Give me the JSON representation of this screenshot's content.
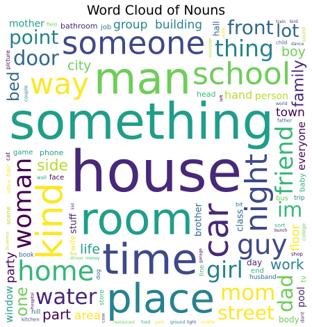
{
  "chart_data": {
    "type": "wordcloud",
    "title": "Word Cloud of Nouns",
    "background": "#ffffff",
    "colormap": "viridis",
    "words": [
      {
        "text": "house",
        "weight": 1.0
      },
      {
        "text": "something",
        "weight": 0.86
      },
      {
        "text": "room",
        "weight": 0.74
      },
      {
        "text": "man",
        "weight": 0.74
      },
      {
        "text": "time",
        "weight": 0.7
      },
      {
        "text": "place",
        "weight": 0.66
      },
      {
        "text": "kind",
        "weight": 0.58
      },
      {
        "text": "car",
        "weight": 0.56
      },
      {
        "text": "someone",
        "weight": 0.5
      },
      {
        "text": "night",
        "weight": 0.48
      },
      {
        "text": "school",
        "weight": 0.48
      },
      {
        "text": "way",
        "weight": 0.46
      },
      {
        "text": "guy",
        "weight": 0.42
      },
      {
        "text": "home",
        "weight": 0.42
      },
      {
        "text": "woman",
        "weight": 0.38
      },
      {
        "text": "friend",
        "weight": 0.36
      },
      {
        "text": "girl",
        "weight": 0.34
      },
      {
        "text": "thing",
        "weight": 0.34
      },
      {
        "text": "water",
        "weight": 0.32
      },
      {
        "text": "mom",
        "weight": 0.32
      },
      {
        "text": "im",
        "weight": 0.3
      },
      {
        "text": "door",
        "weight": 0.3
      },
      {
        "text": "dad",
        "weight": 0.3
      },
      {
        "text": "front",
        "weight": 0.28
      },
      {
        "text": "street",
        "weight": 0.28
      },
      {
        "text": "point",
        "weight": 0.28
      },
      {
        "text": "family",
        "weight": 0.26
      },
      {
        "text": "side",
        "weight": 0.26
      },
      {
        "text": "everyone",
        "weight": 0.26
      },
      {
        "text": "lot",
        "weight": 0.26
      },
      {
        "text": "part",
        "weight": 0.24
      },
      {
        "text": "work",
        "weight": 0.24
      },
      {
        "text": "one",
        "weight": 0.22
      },
      {
        "text": "hand",
        "weight": 0.22
      },
      {
        "text": "bed",
        "weight": 0.22
      },
      {
        "text": "floor",
        "weight": 0.2
      },
      {
        "text": "building",
        "weight": 0.2
      },
      {
        "text": "group",
        "weight": 0.2
      },
      {
        "text": "person",
        "weight": 0.2
      },
      {
        "text": "life",
        "weight": 0.18
      },
      {
        "text": "city",
        "weight": 0.18
      },
      {
        "text": "boy",
        "weight": 0.18
      },
      {
        "text": "stuff",
        "weight": 0.18
      },
      {
        "text": "class",
        "weight": 0.18
      },
      {
        "text": "brother",
        "weight": 0.18
      },
      {
        "text": "mother",
        "weight": 0.16
      },
      {
        "text": "window",
        "weight": 0.16
      },
      {
        "text": "bathroom",
        "weight": 0.16
      },
      {
        "text": "town",
        "weight": 0.16
      },
      {
        "text": "party",
        "weight": 0.16
      },
      {
        "text": "head",
        "weight": 0.16
      },
      {
        "text": "area",
        "weight": 0.16
      },
      {
        "text": "husband",
        "weight": 0.15
      },
      {
        "text": "phone",
        "weight": 0.15
      },
      {
        "text": "hall",
        "weight": 0.14
      },
      {
        "text": "body",
        "weight": 0.14
      },
      {
        "text": "day",
        "weight": 0.14
      },
      {
        "text": "face",
        "weight": 0.14
      },
      {
        "text": "sort",
        "weight": 0.14
      },
      {
        "text": "game",
        "weight": 0.14
      },
      {
        "text": "job",
        "weight": 0.14
      },
      {
        "text": "end",
        "weight": 0.14
      },
      {
        "text": "bus",
        "weight": 0.14
      },
      {
        "text": "book",
        "weight": 0.13
      },
      {
        "text": "father",
        "weight": 0.13
      },
      {
        "text": "wife",
        "weight": 0.13
      },
      {
        "text": "pool",
        "weight": 0.13
      },
      {
        "text": "scene",
        "weight": 0.12
      },
      {
        "text": "kitchen",
        "weight": 0.12
      },
      {
        "text": "anything",
        "weight": 0.12
      },
      {
        "text": "hill",
        "weight": 0.12
      },
      {
        "text": "trip",
        "weight": 0.12
      },
      {
        "text": "table",
        "weight": 0.12
      },
      {
        "text": "field",
        "weight": 0.12
      },
      {
        "text": "baby",
        "weight": 0.12
      },
      {
        "text": "hair",
        "weight": 0.12
      },
      {
        "text": "shop",
        "weight": 0.12
      },
      {
        "text": "office",
        "weight": 0.12
      },
      {
        "text": "couple",
        "weight": 0.12
      },
      {
        "text": "line",
        "weight": 0.12
      },
      {
        "text": "box",
        "weight": 0.12
      },
      {
        "text": "child",
        "weight": 0.11
      },
      {
        "text": "morning",
        "weight": 0.11
      },
      {
        "text": "bedroom",
        "weight": 0.11
      },
      {
        "text": "movie",
        "weight": 0.11
      },
      {
        "text": "boat",
        "weight": 0.11
      },
      {
        "text": "lady",
        "weight": 0.11
      },
      {
        "text": "sister",
        "weight": 0.11
      },
      {
        "text": "store",
        "weight": 0.11
      },
      {
        "text": "plane",
        "weight": 0.11
      },
      {
        "text": "money",
        "weight": 0.1
      },
      {
        "text": "world",
        "weight": 0.1
      },
      {
        "text": "bunch",
        "weight": 0.1
      },
      {
        "text": "everything",
        "weight": 0.1
      },
      {
        "text": "train",
        "weight": 0.1
      },
      {
        "text": "dog",
        "weight": 0.1
      },
      {
        "text": "ground",
        "weight": 0.1
      },
      {
        "text": "mountain",
        "weight": 0.1
      },
      {
        "text": "food",
        "weight": 0.1
      },
      {
        "text": "dance",
        "weight": 0.1
      },
      {
        "text": "tv",
        "weight": 0.1
      },
      {
        "text": "truck",
        "weight": 0.1
      },
      {
        "text": "gun",
        "weight": 0.1
      },
      {
        "text": "bridge",
        "weight": 0.09
      },
      {
        "text": "name",
        "weight": 0.09
      },
      {
        "text": "walk",
        "weight": 0.09
      },
      {
        "text": "beach",
        "weight": 0.09
      },
      {
        "text": "paper",
        "weight": 0.09
      },
      {
        "text": "look",
        "weight": 0.09
      },
      {
        "text": "college",
        "weight": 0.09
      },
      {
        "text": "elevator",
        "weight": 0.09
      },
      {
        "text": "police",
        "weight": 0.09
      },
      {
        "text": "reason",
        "weight": 0.09
      },
      {
        "text": "dress",
        "weight": 0.09
      },
      {
        "text": "situation",
        "weight": 0.09
      },
      {
        "text": "classroom",
        "weight": 0.08
      },
      {
        "text": "business",
        "weight": 0.08
      },
      {
        "text": "dinner",
        "weight": 0.08
      },
      {
        "text": "restaurant",
        "weight": 0.08
      },
      {
        "text": "basement",
        "weight": 0.08
      },
      {
        "text": "middle",
        "weight": 0.08
      },
      {
        "text": "picture",
        "weight": 0.08
      },
      {
        "text": "daughter",
        "weight": 0.08
      },
      {
        "text": "garage",
        "weight": 0.08
      },
      {
        "text": "bit",
        "weight": 0.08
      },
      {
        "text": "desk",
        "weight": 0.08
      },
      {
        "text": "grass",
        "weight": 0.08
      },
      {
        "text": "porch",
        "weight": 0.08
      },
      {
        "text": "park",
        "weight": 0.08
      },
      {
        "text": "chair",
        "weight": 0.08
      },
      {
        "text": "card",
        "weight": 0.08
      },
      {
        "text": "cat",
        "weight": 0.08
      },
      {
        "text": "motel",
        "weight": 0.08
      },
      {
        "text": "back",
        "weight": 0.08
      },
      {
        "text": "ship",
        "weight": 0.08
      },
      {
        "text": "edge",
        "weight": 0.08
      },
      {
        "text": "teacher",
        "weight": 0.08
      },
      {
        "text": "show",
        "weight": 0.07
      },
      {
        "text": "center",
        "weight": 0.07
      },
      {
        "text": "wall",
        "weight": 0.07
      },
      {
        "text": "team",
        "weight": 0.07
      },
      {
        "text": "try",
        "weight": 0.07
      },
      {
        "text": "didnt",
        "weight": 0.07
      },
      {
        "text": "dont",
        "weight": 0.07
      },
      {
        "text": "feeling",
        "weight": 0.07
      },
      {
        "text": "sound",
        "weight": 0.07
      },
      {
        "text": "land",
        "weight": 0.07
      },
      {
        "text": "church",
        "weight": 0.07
      },
      {
        "text": "event",
        "weight": 0.07
      },
      {
        "text": "river",
        "weight": 0.07
      },
      {
        "text": "voice",
        "weight": 0.07
      },
      {
        "text": "monster",
        "weight": 0.07
      },
      {
        "text": "bird",
        "weight": 0.06
      },
      {
        "text": "meeting",
        "weight": 0.06
      },
      {
        "text": "attention",
        "weight": 0.06
      },
      {
        "text": "coffee",
        "weight": 0.06
      },
      {
        "text": "figure",
        "weight": 0.06
      },
      {
        "text": "station",
        "weight": 0.06
      },
      {
        "text": "trouble",
        "weight": 0.06
      },
      {
        "text": "moment",
        "weight": 0.06
      },
      {
        "text": "hospital",
        "weight": 0.06
      },
      {
        "text": "somebody",
        "weight": 0.06
      },
      {
        "text": "conversation",
        "weight": 0.06
      },
      {
        "text": "remember",
        "weight": 0.06
      },
      {
        "text": "everybody",
        "weight": 0.06
      },
      {
        "text": "boyfriend",
        "weight": 0.06
      },
      {
        "text": "nothing",
        "weight": 0.06
      },
      {
        "text": "hallway",
        "weight": 0.06
      },
      {
        "text": "stair",
        "weight": 0.06
      },
      {
        "text": "trump",
        "weight": 0.06
      },
      {
        "text": "blood",
        "weight": 0.06
      },
      {
        "text": "light",
        "weight": 0.06
      },
      {
        "text": "board",
        "weight": 0.05
      },
      {
        "text": "left",
        "weight": 0.05
      },
      {
        "text": "case",
        "weight": 0.05
      },
      {
        "text": "gift",
        "weight": 0.05
      },
      {
        "text": "kid",
        "weight": 0.05
      },
      {
        "text": "top",
        "weight": 0.05
      },
      {
        "text": "air",
        "weight": 0.05
      },
      {
        "text": "fire",
        "weight": 0.05
      },
      {
        "text": "bag",
        "weight": 0.05
      },
      {
        "text": "music",
        "weight": 0.05
      }
    ]
  }
}
